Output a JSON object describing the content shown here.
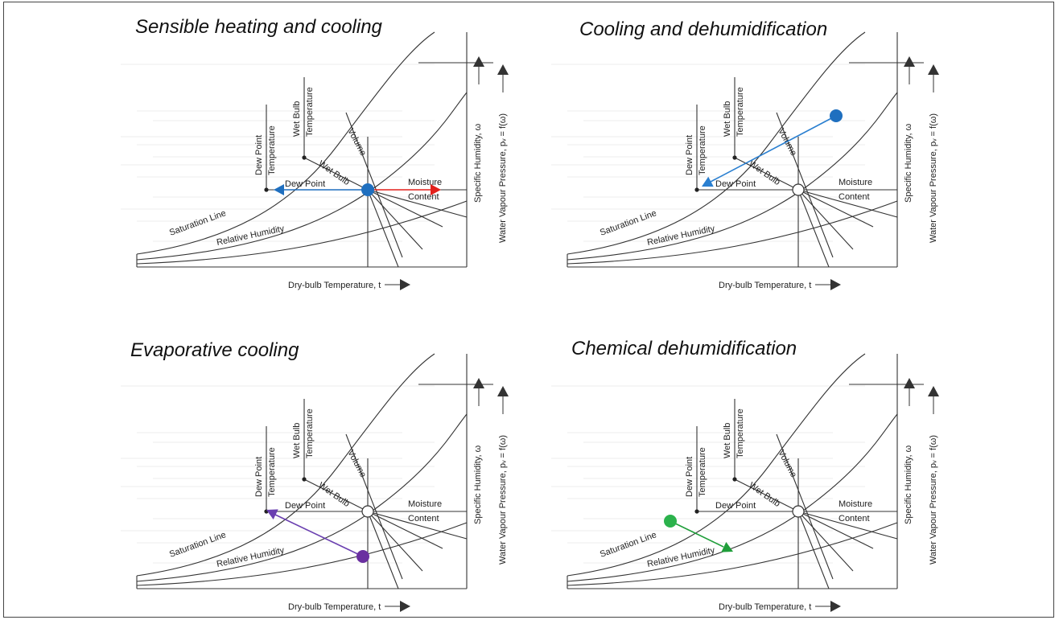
{
  "panels": [
    {
      "title": "Sensible heating and cooling",
      "process": "sensible",
      "arrow_colors": [
        "#1f6fbf",
        "#e3201b"
      ],
      "dot_color": "#1f6fbf"
    },
    {
      "title": "Cooling and dehumidification",
      "process": "cooling_dehum",
      "arrow_colors": [
        "#2a7fd0"
      ],
      "dot_color": "#1f6fbf"
    },
    {
      "title": "Evaporative cooling",
      "process": "evaporative",
      "arrow_colors": [
        "#6a3fb0"
      ],
      "dot_color": "#6a2fa0"
    },
    {
      "title": "Chemical dehumidification",
      "process": "chemical",
      "arrow_colors": [
        "#1f9e3a"
      ],
      "dot_color": "#2bb24c"
    }
  ],
  "chart_labels": {
    "dew_point": "Dew Point",
    "temperature": "Temperature",
    "wet_bulb": "Wet Bulb",
    "volume": "Volume",
    "moisture": "Moisture",
    "content": "Content",
    "saturation_line": "Saturation Line",
    "relative_humidity": "Relative Humidity",
    "specific_humidity": "Specific Humidity, ω",
    "water_vapour_pressure": "Water Vapour Pressure, pᵥ = f(ω)",
    "dry_bulb": "Dry-bulb Temperature, t"
  }
}
